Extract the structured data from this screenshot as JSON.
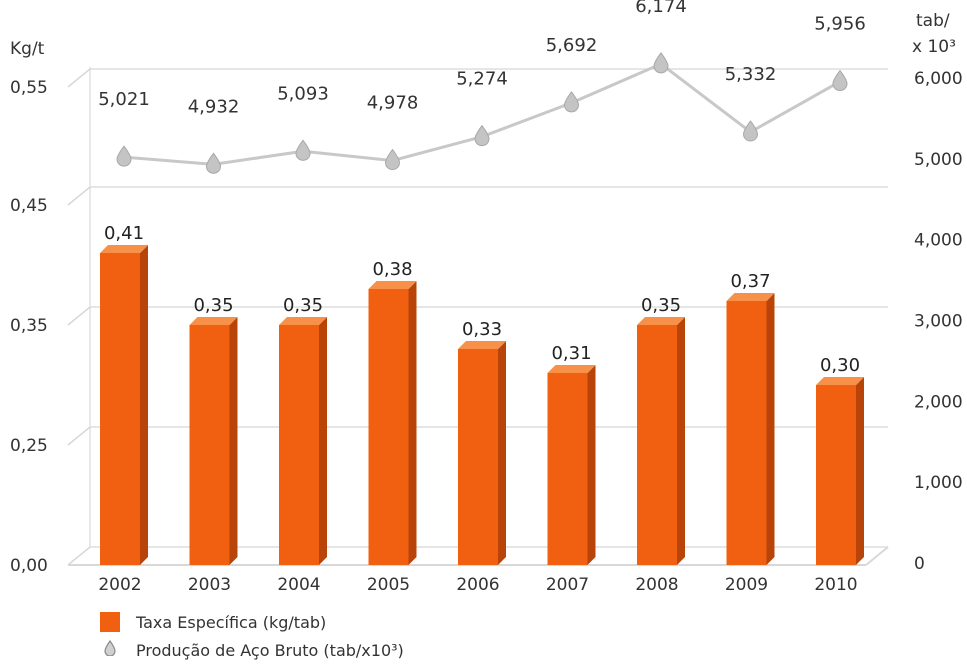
{
  "chart_data": {
    "type": "bar",
    "categories": [
      "2002",
      "2003",
      "2004",
      "2005",
      "2006",
      "2007",
      "2008",
      "2009",
      "2010"
    ],
    "series": [
      {
        "name": "Taxa Específica (kg/tab)",
        "type": "bar",
        "axis": "left",
        "values": [
          0.41,
          0.35,
          0.35,
          0.38,
          0.33,
          0.31,
          0.35,
          0.37,
          0.3
        ],
        "labels": [
          "0,41",
          "0,35",
          "0,35",
          "0,38",
          "0,33",
          "0,31",
          "0,35",
          "0,37",
          "0,30"
        ]
      },
      {
        "name": "Produção de Aço Bruto (tab/x10³)",
        "type": "line",
        "axis": "right",
        "values": [
          5021,
          4932,
          5093,
          4978,
          5274,
          5692,
          6174,
          5332,
          5956
        ],
        "labels": [
          "5,021",
          "4,932",
          "5,093",
          "4,978",
          "5,274",
          "5,692",
          "6,174",
          "5,332",
          "5,956"
        ]
      }
    ],
    "left_axis": {
      "unit": "Kg/t",
      "ticks": [
        0.0,
        0.25,
        0.35,
        0.45,
        0.55
      ],
      "tick_labels": [
        "0,00",
        "0,25",
        "0,35",
        "0,45",
        "0,55"
      ]
    },
    "right_axis": {
      "unit_line1": "tab/",
      "unit_line2": "x 10³",
      "ticks": [
        0,
        1000,
        2000,
        3000,
        4000,
        5000,
        6000
      ],
      "tick_labels": [
        "0",
        "1,000",
        "2,000",
        "3,000",
        "4,000",
        "5,000",
        "6,000"
      ]
    },
    "grid": true,
    "legend_position": "bottom-left"
  },
  "colors": {
    "bar_front": "#f06010",
    "bar_side": "#b8440a",
    "bar_top": "#f7914a",
    "line": "#c8c8c8",
    "marker": "#c4c4c4",
    "grid": "#d8d8d8"
  },
  "legend": {
    "bar_label": "Taxa Específica (kg/tab)",
    "line_label": "Produção de Aço Bruto (tab/x10³)",
    "line_icon": "drop-icon"
  }
}
